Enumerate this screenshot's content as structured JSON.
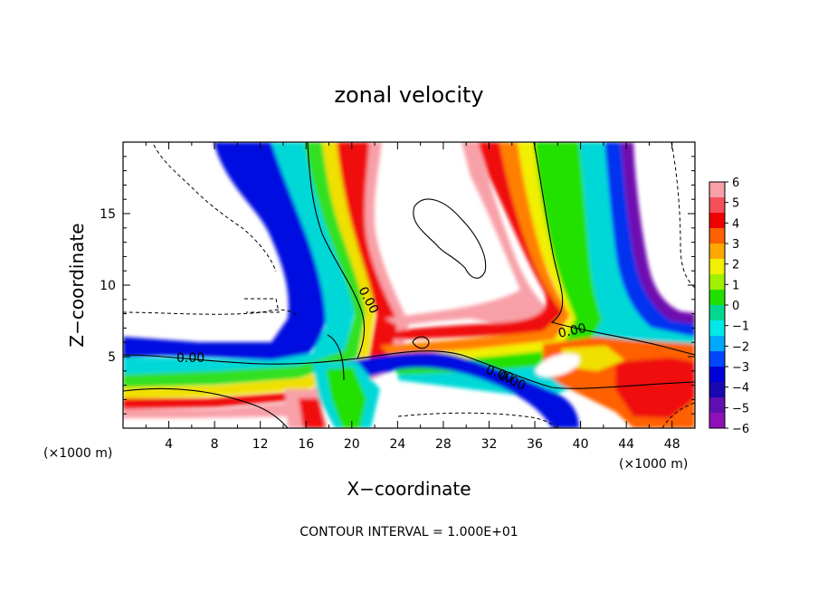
{
  "chart_data": {
    "type": "heatmap",
    "title": "zonal velocity",
    "xlabel": "X−coordinate",
    "ylabel": "Z−coordinate",
    "x_unit_label": "(×1000 m)",
    "y_unit_label": "(×1000 m)",
    "xlim": [
      0,
      50
    ],
    "ylim": [
      0,
      20
    ],
    "x_ticks": [
      "4",
      "8",
      "12",
      "16",
      "20",
      "24",
      "28",
      "32",
      "36",
      "40",
      "44",
      "48"
    ],
    "x_tick_values": [
      4,
      8,
      12,
      16,
      20,
      24,
      28,
      32,
      36,
      40,
      44,
      48
    ],
    "y_ticks": [
      "5",
      "10",
      "15"
    ],
    "y_tick_values": [
      5,
      10,
      15
    ],
    "colorbar": {
      "range": [
        -6,
        6
      ],
      "labels": [
        "6",
        "5",
        "4",
        "3",
        "2",
        "1",
        "0",
        "−1",
        "−2",
        "−3",
        "−4",
        "−5",
        "−6"
      ],
      "colors": [
        "#f7a0a8",
        "#f4505a",
        "#f00000",
        "#ff6000",
        "#ffa800",
        "#f0f000",
        "#a0f000",
        "#20e000",
        "#00d890",
        "#00e8e8",
        "#00a8ff",
        "#0048ff",
        "#0000d8",
        "#1808b0",
        "#6010b0",
        "#9010b8"
      ]
    },
    "contour_labels": [
      "0.00",
      "0.00",
      "0.00",
      "0.00",
      "0.00"
    ],
    "footer": "CONTOUR INTERVAL = 1.000E+01",
    "grid": false
  }
}
